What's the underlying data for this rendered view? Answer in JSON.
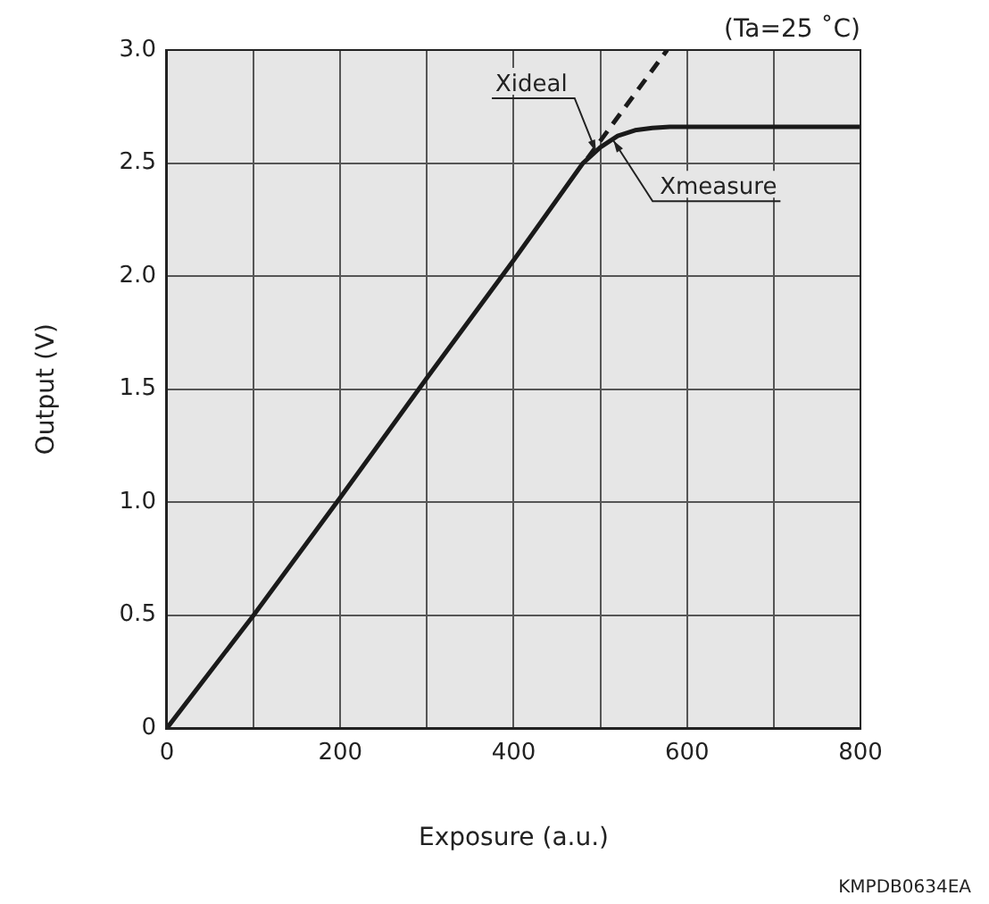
{
  "chart_data": {
    "type": "line",
    "xlabel": "Exposure (a.u.)",
    "ylabel": "Output (V)",
    "xlim": [
      0,
      800
    ],
    "xticks": [
      0,
      {
        "value": 100,
        "label": null
      },
      200,
      {
        "value": 300,
        "label": null
      },
      400,
      {
        "value": 500,
        "label": null
      },
      600,
      {
        "value": 700,
        "label": null
      },
      800
    ],
    "ylim": [
      0,
      3
    ],
    "yticks": [
      0,
      0.5,
      {
        "value": 1,
        "label": "1.0"
      },
      1.5,
      {
        "value": 2,
        "label": "2.0"
      },
      2.5,
      {
        "value": 3,
        "label": "3.0"
      }
    ],
    "grid": true,
    "legend": false,
    "marker": "none",
    "series": [
      {
        "color": "#1a1a1a",
        "line_style": "solid",
        "x": [
          0,
          100,
          200,
          300,
          400,
          480,
          500,
          520,
          540,
          560,
          580,
          800
        ],
        "values": [
          0,
          0.5,
          1.02,
          1.55,
          2.07,
          2.5,
          2.57,
          2.62,
          2.645,
          2.655,
          2.66,
          2.66
        ]
      },
      {
        "color": "#1a1a1a",
        "line_style": "dashed",
        "x": [
          485,
          577
        ],
        "values": [
          2.52,
          3.0
        ]
      }
    ],
    "annotations": [
      {
        "text": "Xideal",
        "x": 495,
        "y": 2.55
      },
      {
        "text": "Xmeasure",
        "x": 515,
        "y": 2.6
      },
      "(Ta=25 ˚C)",
      "KMPDB0634EA"
    ]
  }
}
